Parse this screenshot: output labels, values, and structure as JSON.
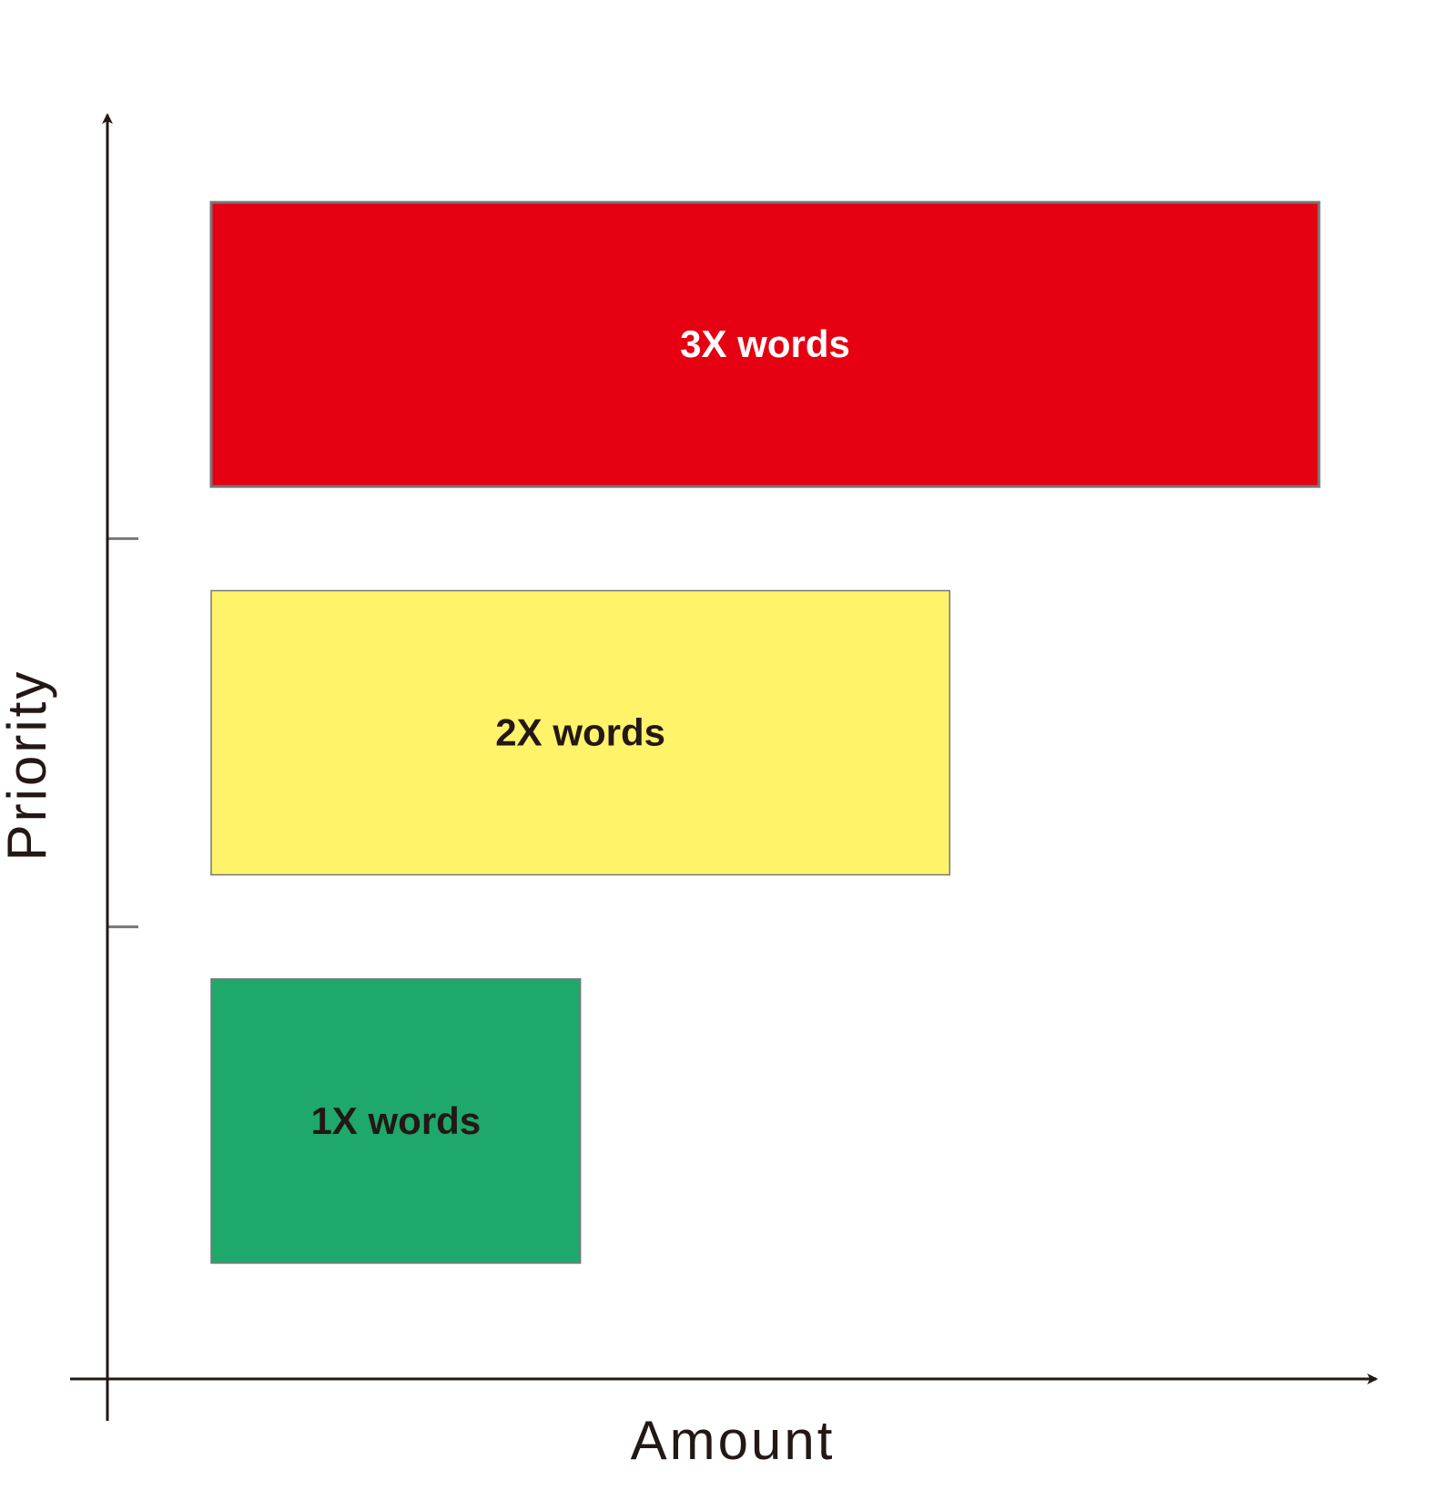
{
  "chart_data": {
    "type": "bar",
    "orientation": "horizontal",
    "xlabel": "Amount",
    "ylabel": "Priority",
    "categories": [
      "1X words",
      "2X words",
      "3X words"
    ],
    "values": [
      1,
      2,
      3
    ],
    "xlim": [
      0,
      3
    ],
    "colors": [
      "#1fa86b",
      "#fff36a",
      "#e50012"
    ],
    "label_colors": [
      "#231815",
      "#231815",
      "#ffffff"
    ],
    "grid": false,
    "legend": "none"
  }
}
